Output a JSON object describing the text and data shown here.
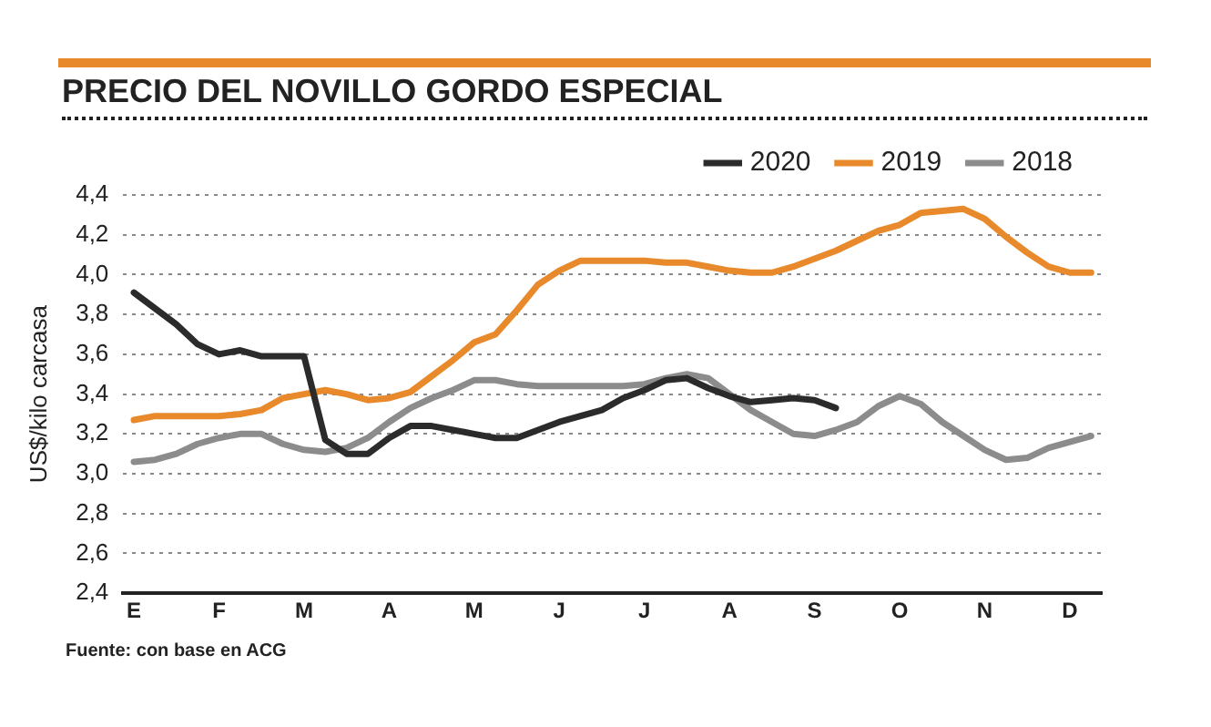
{
  "chart_data": {
    "type": "line",
    "title": "PRECIO DEL NOVILLO GORDO ESPECIAL",
    "ylabel": "US$/kilo carcasa",
    "categories": [
      "E",
      null,
      null,
      null,
      "F",
      null,
      null,
      null,
      "M",
      null,
      null,
      null,
      "A",
      null,
      null,
      null,
      "M",
      null,
      null,
      null,
      "J",
      null,
      null,
      null,
      "J",
      null,
      null,
      null,
      "A",
      null,
      null,
      null,
      "S",
      null,
      null,
      null,
      "O",
      null,
      null,
      null,
      "N",
      null,
      null,
      null,
      "D",
      null
    ],
    "ylim": [
      2.4,
      4.4
    ],
    "yticks": [
      {
        "value": 2.4,
        "label": "2,4"
      },
      {
        "value": 2.6,
        "label": "2,6"
      },
      {
        "value": 2.8,
        "label": "2,8"
      },
      {
        "value": 3.0,
        "label": "3,0"
      },
      {
        "value": 3.2,
        "label": "3,2"
      },
      {
        "value": 3.4,
        "label": "3,4"
      },
      {
        "value": 3.6,
        "label": "3,6"
      },
      {
        "value": 3.8,
        "label": "3,8"
      },
      {
        "value": 4.0,
        "label": "4,0"
      },
      {
        "value": 4.2,
        "label": "4,2"
      },
      {
        "value": 4.4,
        "label": "4,4"
      }
    ],
    "grid": "y",
    "legend": "top right",
    "series": [
      {
        "name": "2020",
        "color": "#2b2b2b",
        "values": [
          3.91,
          3.83,
          3.75,
          3.65,
          3.6,
          3.62,
          3.59,
          3.59,
          3.59,
          3.17,
          3.1,
          3.1,
          3.18,
          3.24,
          3.24,
          3.22,
          3.2,
          3.18,
          3.18,
          3.22,
          3.26,
          3.29,
          3.32,
          3.38,
          3.42,
          3.47,
          3.48,
          3.43,
          3.39,
          3.36,
          3.37,
          3.38,
          3.37,
          3.33,
          null,
          null,
          null,
          null,
          null,
          null,
          null,
          null,
          null,
          null,
          null,
          null
        ]
      },
      {
        "name": "2019",
        "color": "#e8892b",
        "values": [
          3.27,
          3.29,
          3.29,
          3.29,
          3.29,
          3.3,
          3.32,
          3.38,
          3.4,
          3.42,
          3.4,
          3.37,
          3.38,
          3.41,
          3.49,
          3.57,
          3.66,
          3.7,
          3.82,
          3.95,
          4.02,
          4.07,
          4.07,
          4.07,
          4.07,
          4.06,
          4.06,
          4.04,
          4.02,
          4.01,
          4.01,
          4.04,
          4.08,
          4.12,
          4.17,
          4.22,
          4.25,
          4.31,
          4.32,
          4.33,
          4.28,
          4.19,
          4.11,
          4.04,
          4.01,
          4.01
        ]
      },
      {
        "name": "2018",
        "color": "#8c8c8c",
        "values": [
          3.06,
          3.07,
          3.1,
          3.15,
          3.18,
          3.2,
          3.2,
          3.15,
          3.12,
          3.11,
          3.13,
          3.18,
          3.26,
          3.33,
          3.38,
          3.42,
          3.47,
          3.47,
          3.45,
          3.44,
          3.44,
          3.44,
          3.44,
          3.44,
          3.45,
          3.48,
          3.5,
          3.48,
          3.4,
          3.32,
          3.26,
          3.2,
          3.19,
          3.22,
          3.26,
          3.34,
          3.39,
          3.35,
          3.26,
          3.19,
          3.12,
          3.07,
          3.08,
          3.13,
          3.16,
          3.19
        ]
      }
    ],
    "annotations": [
      "Fuente: con base en ACG"
    ]
  }
}
